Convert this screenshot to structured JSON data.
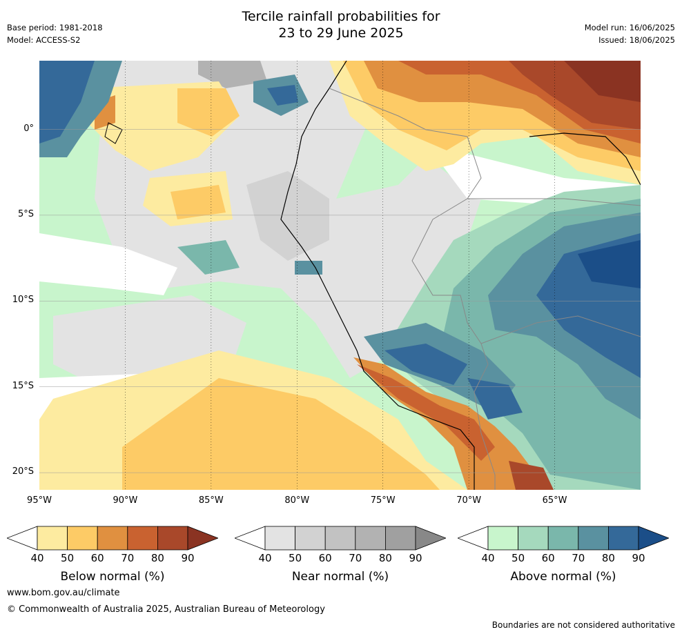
{
  "header": {
    "title_line1": "Tercile rainfall probabilities for",
    "title_line2": "23 to 29 June 2025",
    "base_period": "Base period: 1981-2018",
    "model": "Model: ACCESS-S2",
    "model_run": "Model run: 16/06/2025",
    "issued": "Issued: 18/06/2025"
  },
  "map": {
    "lon_labels": [
      "95°W",
      "90°W",
      "85°W",
      "80°W",
      "75°W",
      "70°W",
      "65°W"
    ],
    "lat_labels": [
      "0°",
      "5°S",
      "10°S",
      "15°S",
      "20°S"
    ],
    "lon_range": [
      -95,
      -60
    ],
    "lat_range": [
      -21,
      4
    ],
    "gridlines": true
  },
  "legends": [
    {
      "caption": "Below normal (%)",
      "ticks": [
        "40",
        "50",
        "60",
        "70",
        "80",
        "90"
      ],
      "colors": [
        "#ffffff",
        "#fdeba0",
        "#fdcb66",
        "#e09040",
        "#c96230",
        "#a9482a",
        "#8a3322"
      ]
    },
    {
      "caption": "Near normal (%)",
      "ticks": [
        "40",
        "50",
        "60",
        "70",
        "80",
        "90"
      ],
      "colors": [
        "#ffffff",
        "#e3e3e3",
        "#d2d2d2",
        "#c2c2c2",
        "#b2b2b2",
        "#a0a0a0",
        "#888888"
      ]
    },
    {
      "caption": "Above normal (%)",
      "ticks": [
        "40",
        "50",
        "60",
        "70",
        "80",
        "90"
      ],
      "colors": [
        "#ffffff",
        "#c8f5cc",
        "#a5d9bd",
        "#7ab7ab",
        "#5a91a0",
        "#346999",
        "#1b4e88"
      ]
    }
  ],
  "footer": {
    "website": "www.bom.gov.au/climate",
    "copyright": "© Commonwealth of Australia 2025, Australian Bureau of Meteorology",
    "disclaimer": "Boundaries are not considered authoritative"
  }
}
